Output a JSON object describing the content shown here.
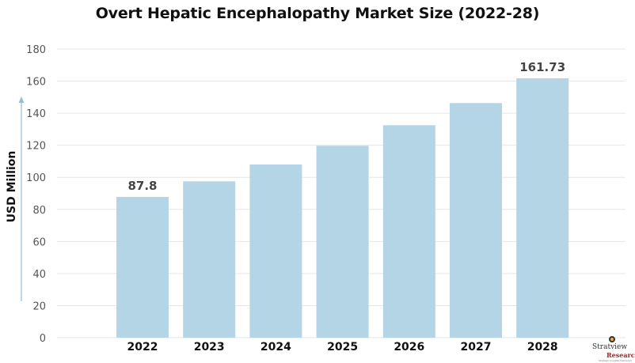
{
  "chart_data": {
    "type": "bar",
    "title": "Overt Hepatic Encephalopathy Market Size (2022-28)",
    "xlabel": "",
    "ylabel": "USD Million",
    "categories": [
      "2022",
      "2023",
      "2024",
      "2025",
      "2026",
      "2027",
      "2028"
    ],
    "values": [
      87.8,
      97.5,
      108.0,
      119.7,
      132.5,
      146.3,
      161.73
    ],
    "data_labels": [
      {
        "category": "2022",
        "text": "87.8"
      },
      {
        "category": "2028",
        "text": "161.73"
      }
    ],
    "ylim": [
      0,
      180
    ],
    "yticks": [
      0,
      20,
      40,
      60,
      80,
      100,
      120,
      140,
      160,
      180
    ],
    "grid": true,
    "legend": "none",
    "bar_color": "#b3d5e5",
    "grid_color": "#e6e6e6",
    "axis_arrow_color": "#8fc1d6"
  },
  "branding": {
    "logo_name": "Stratview",
    "logo_sub": "Research",
    "logo_tagline": "Strategic Insights Delivered"
  }
}
